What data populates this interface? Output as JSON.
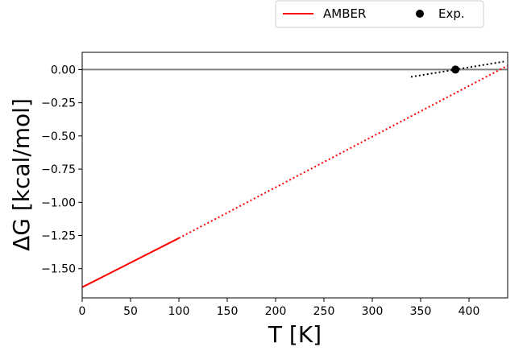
{
  "chart_data": {
    "type": "line",
    "xlabel": "T [K]",
    "ylabel": "ΔG [kcal/mol]",
    "xlim": [
      0,
      440
    ],
    "ylim": [
      -1.72,
      0.13
    ],
    "xticks": [
      0,
      50,
      100,
      150,
      200,
      250,
      300,
      350,
      400
    ],
    "yticks": [
      0.0,
      -0.25,
      -0.5,
      -0.75,
      -1.0,
      -1.25,
      -1.5
    ],
    "ytick_labels": [
      "0.00",
      "−0.25",
      "−0.50",
      "−0.75",
      "−1.00",
      "−1.25",
      "−1.50"
    ],
    "grid": false,
    "legend_placement": "top-right, above plot",
    "reference_line": {
      "y": 0.0,
      "color": "#808080"
    },
    "series": [
      {
        "name": "AMBER",
        "color": "#ff0000",
        "segments": [
          {
            "style": "solid",
            "x": [
              0,
              100
            ],
            "y": [
              -1.64,
              -1.27
            ]
          },
          {
            "style": "dotted",
            "x": [
              100,
              440
            ],
            "y": [
              -1.27,
              0.03
            ]
          }
        ]
      },
      {
        "name": "Exp.",
        "color": "#000000",
        "marker": "circle",
        "points": [
          {
            "x": 386,
            "y": 0.0
          }
        ],
        "tangent": {
          "style": "dotted",
          "x": [
            340,
            436
          ],
          "y": [
            -0.055,
            0.06
          ]
        }
      }
    ]
  }
}
